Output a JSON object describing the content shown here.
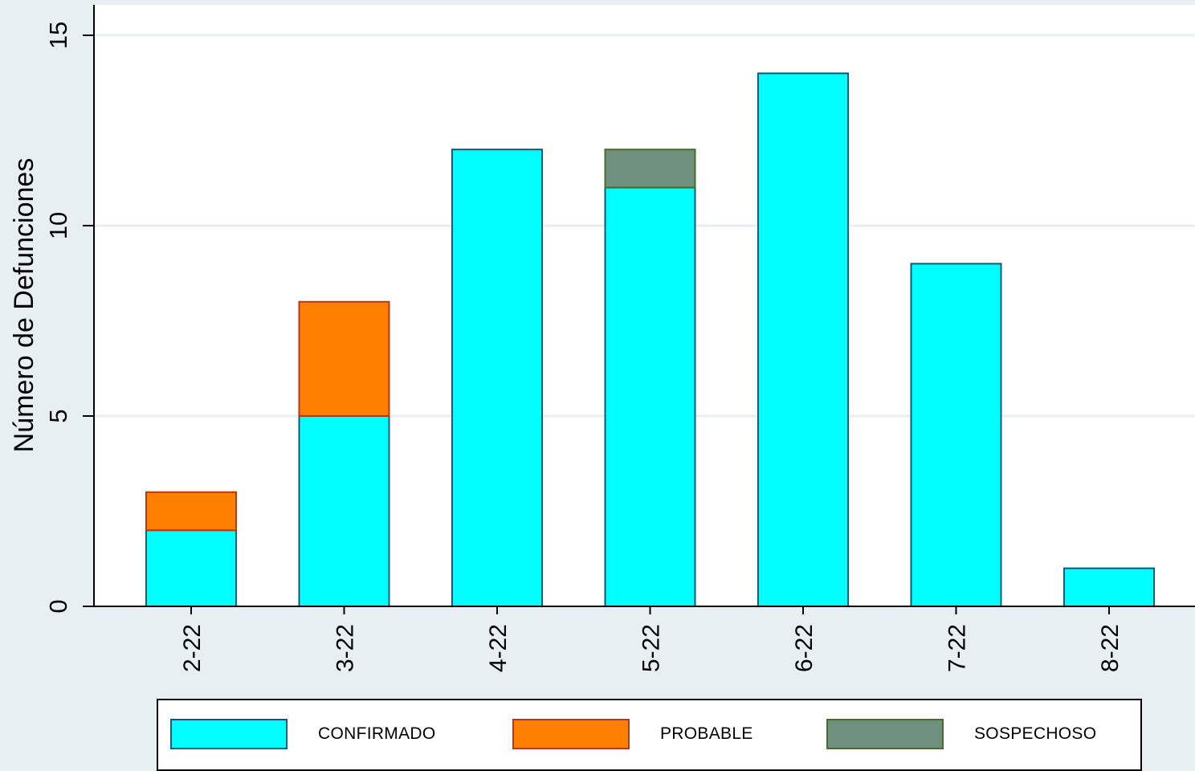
{
  "chart_data": {
    "type": "bar",
    "stacked": true,
    "categories": [
      "2-22",
      "3-22",
      "4-22",
      "5-22",
      "6-22",
      "7-22",
      "8-22"
    ],
    "series": [
      {
        "name": "CONFIRMADO",
        "values": [
          2,
          5,
          12,
          11,
          14,
          9,
          1
        ],
        "color": "#00ffff",
        "stroke": "#0e5a7a"
      },
      {
        "name": "PROBABLE",
        "values": [
          1,
          3,
          0,
          0,
          0,
          0,
          0
        ],
        "color": "#ff7f00",
        "stroke": "#b03a1a"
      },
      {
        "name": "SOSPECHOSO",
        "values": [
          0,
          0,
          0,
          1,
          0,
          0,
          0
        ],
        "color": "#6f8f7f",
        "stroke": "#4a6a2a"
      }
    ],
    "ylabel": "Número de Defunciones",
    "xlabel": "",
    "ylim": [
      0,
      15.8
    ],
    "yticks": [
      0,
      5,
      10,
      15
    ],
    "grid": true,
    "legend_position": "bottom"
  },
  "colors": {
    "background": "#e8eff2",
    "plot_area": "#ffffff",
    "gridline": "#e8eff2"
  }
}
